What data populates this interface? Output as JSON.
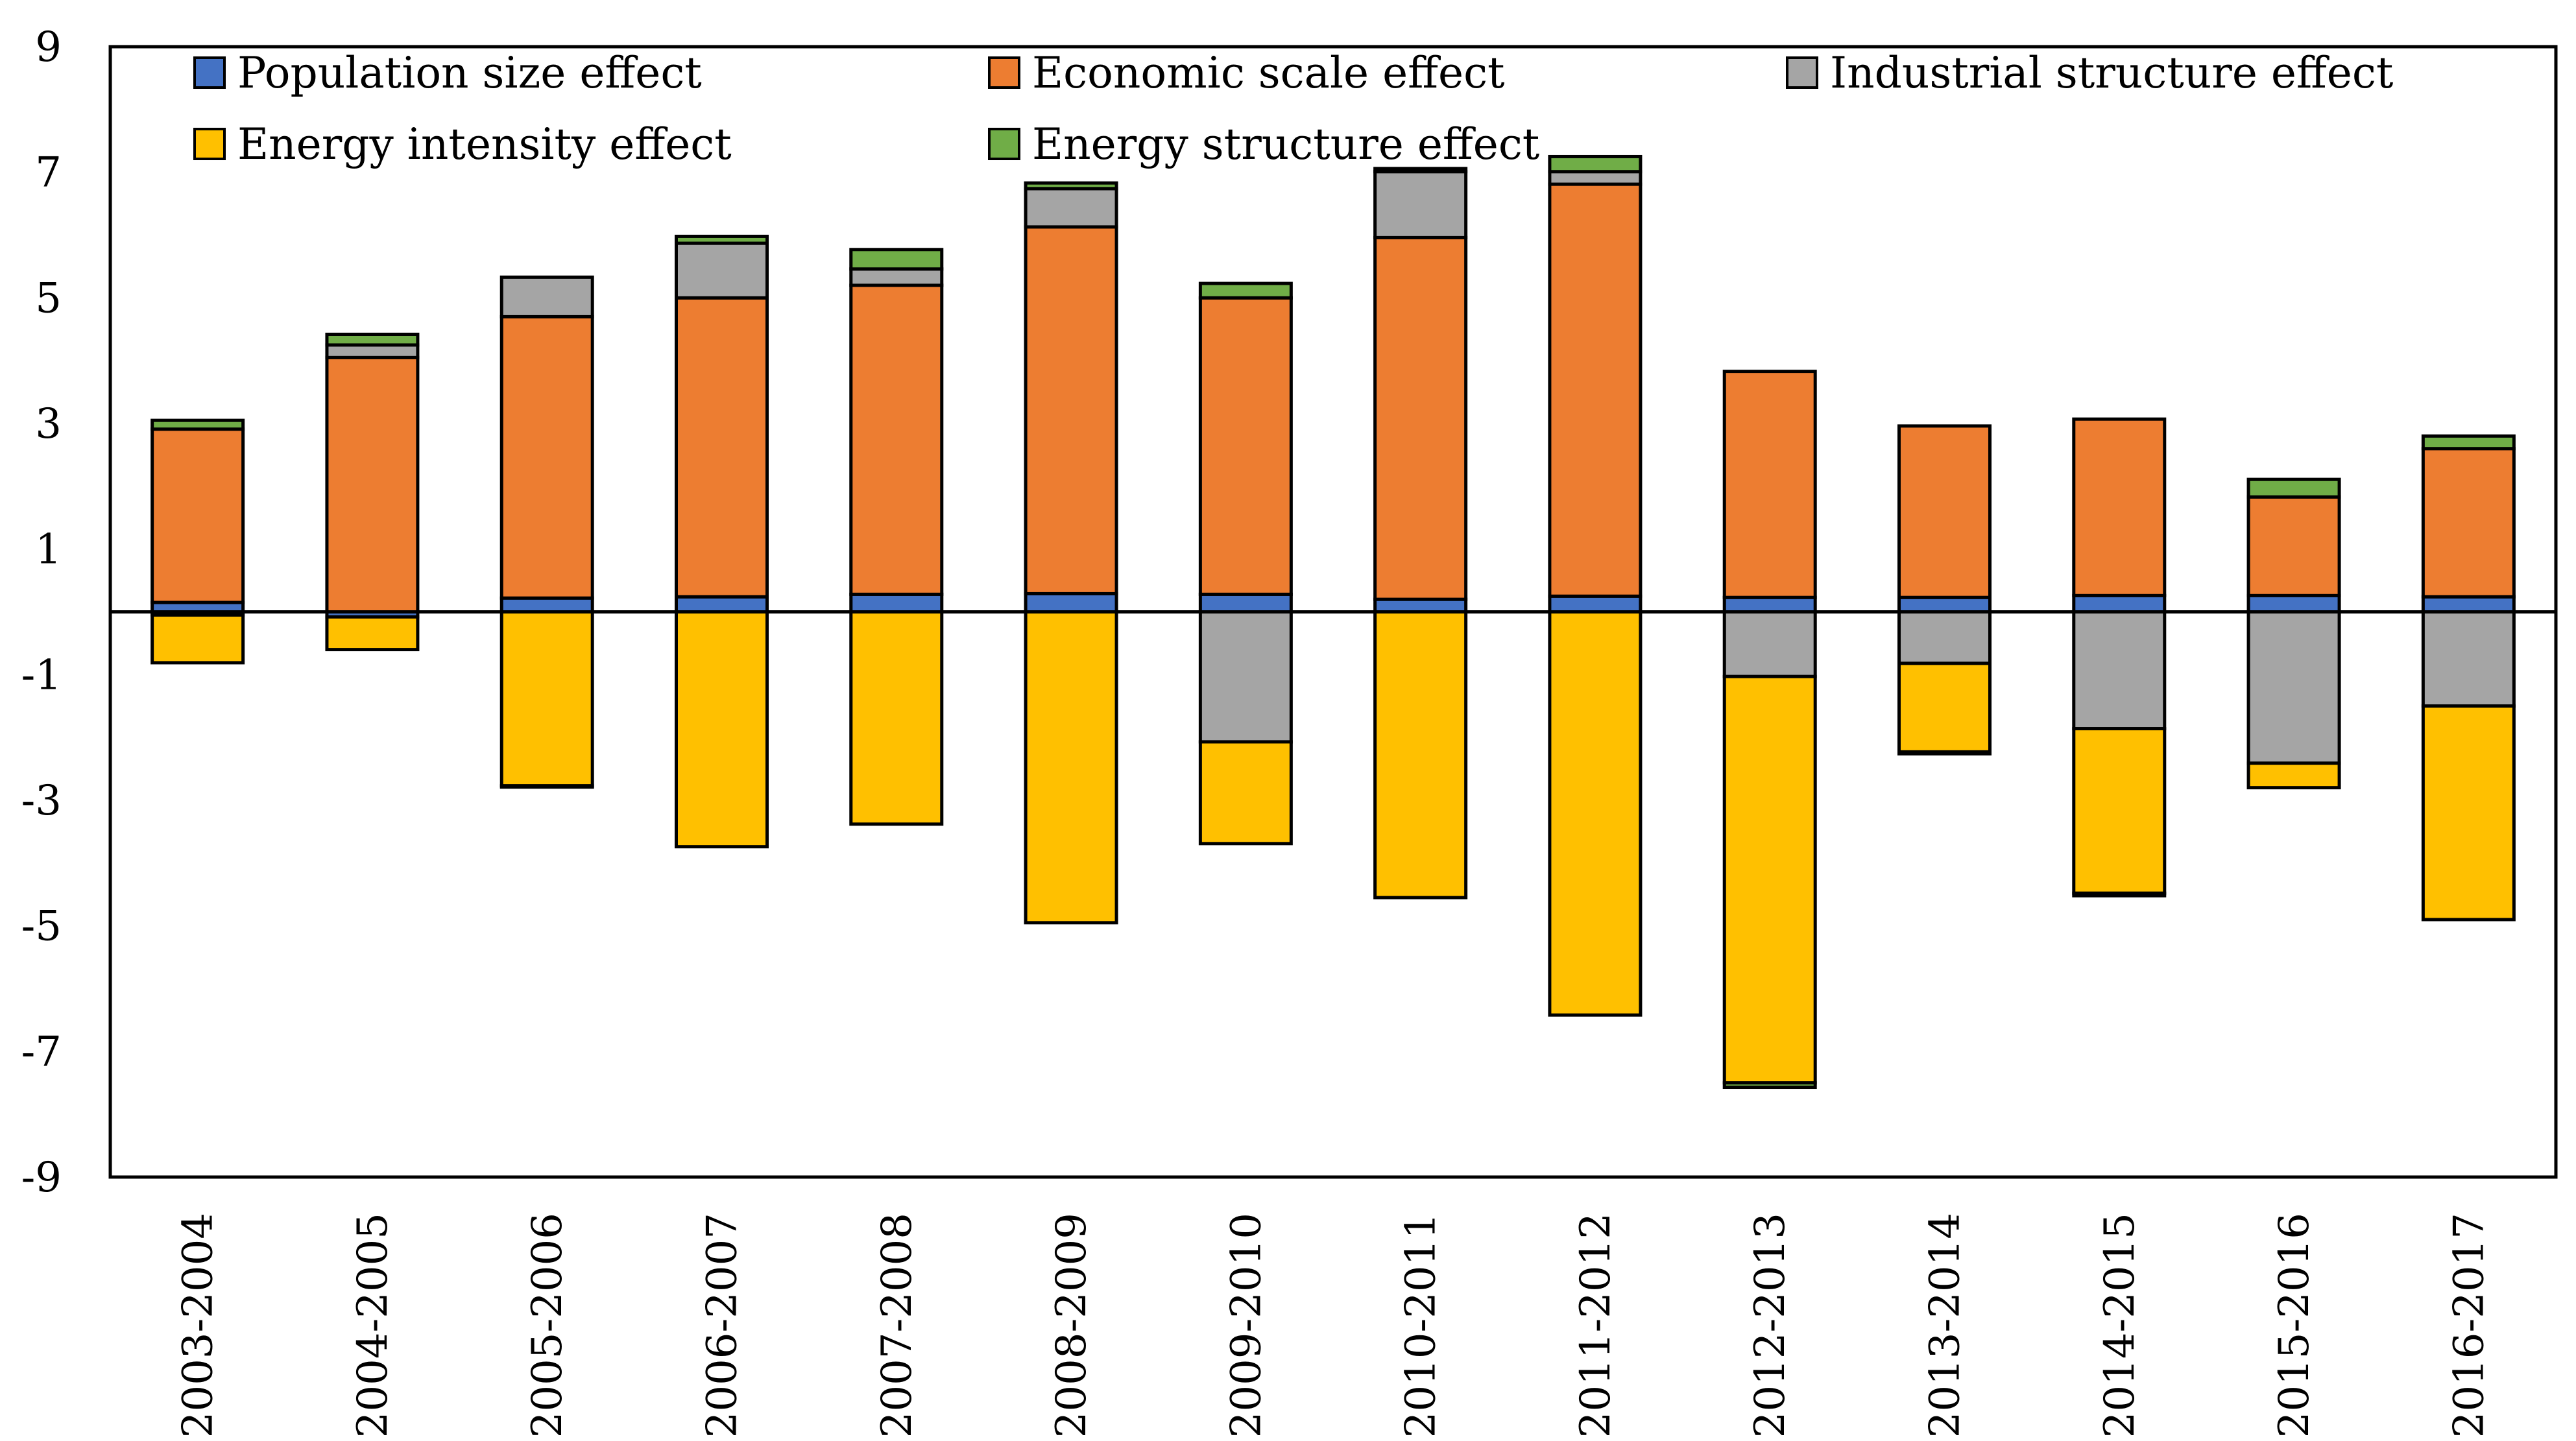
{
  "chart_data": {
    "type": "bar",
    "stacked": true,
    "title": "",
    "xlabel": "",
    "ylabel": "",
    "ylim": [
      -9,
      9
    ],
    "yticks": [
      9,
      7,
      5,
      3,
      1,
      -1,
      -3,
      -5,
      -7,
      -9
    ],
    "ytick_labels": [
      "9",
      "7",
      "5",
      "3",
      "1",
      "-1",
      "-3",
      "-5",
      "-7",
      "-9"
    ],
    "legend_position": "top",
    "categories": [
      "2003-2004",
      "2004-2005",
      "2005-2006",
      "2006-2007",
      "2007-2008",
      "2008-2009",
      "2009-2010",
      "2010-2011",
      "2011-2012",
      "2012-2013",
      "2013-2014",
      "2014-2015",
      "2015-2016",
      "2016-2017"
    ],
    "series": [
      {
        "name": "Population size effect",
        "color": "#4472c4",
        "values": [
          0.15,
          -0.08,
          0.22,
          0.24,
          0.28,
          0.29,
          0.28,
          0.2,
          0.25,
          0.23,
          0.23,
          0.26,
          0.26,
          0.24
        ]
      },
      {
        "name": "Economic scale effect",
        "color": "#ed7d31",
        "values": [
          2.76,
          4.05,
          4.48,
          4.76,
          4.92,
          5.84,
          4.72,
          5.76,
          6.56,
          3.6,
          2.73,
          2.81,
          1.57,
          2.36
        ]
      },
      {
        "name": "Industrial structure effect",
        "color": "#a5a5a5",
        "values": [
          -0.05,
          0.2,
          0.63,
          0.87,
          0.26,
          0.61,
          -2.07,
          1.05,
          0.2,
          -1.03,
          -0.82,
          -1.86,
          -2.41,
          -1.5
        ]
      },
      {
        "name": "Energy intensity effect",
        "color": "#ffc000",
        "values": [
          -0.76,
          -0.52,
          -2.77,
          -3.74,
          -3.38,
          -4.95,
          -1.62,
          -4.55,
          -6.42,
          -6.47,
          -1.41,
          -2.62,
          -0.39,
          -3.4
        ]
      },
      {
        "name": "Energy structure effect",
        "color": "#70ad47",
        "values": [
          0.14,
          0.17,
          -0.02,
          0.11,
          0.31,
          0.09,
          0.23,
          0.05,
          0.24,
          -0.07,
          -0.03,
          -0.04,
          0.28,
          0.2
        ]
      }
    ]
  }
}
